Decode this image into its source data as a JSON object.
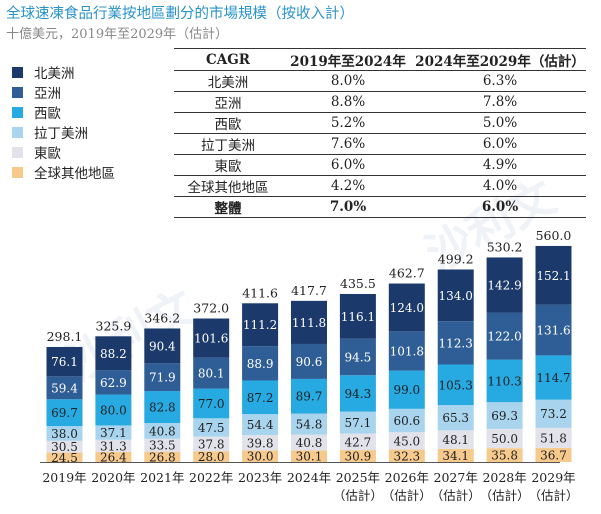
{
  "title": "全球速凍食品行業按地區劃分的市場規模（按收入計）",
  "subtitle": "十億美元，2019年至2029年（估計）",
  "watermark": "沙利文",
  "legend": [
    {
      "label": "北美洲",
      "color": "#1b3a6b"
    },
    {
      "label": "亞洲",
      "color": "#2f5d95"
    },
    {
      "label": "西歐",
      "color": "#27a9e1"
    },
    {
      "label": "拉丁美洲",
      "color": "#a8d4ee"
    },
    {
      "label": "東歐",
      "color": "#e2e2ea"
    },
    {
      "label": "全球其他地區",
      "color": "#f6c98c"
    }
  ],
  "cagr_table": {
    "headers": [
      "CAGR",
      "2019年至2024年",
      "2024年至2029年（估計）"
    ],
    "rows": [
      [
        "北美洲",
        "8.0%",
        "6.3%"
      ],
      [
        "亞洲",
        "8.8%",
        "7.8%"
      ],
      [
        "西歐",
        "5.2%",
        "5.0%"
      ],
      [
        "拉丁美洲",
        "7.6%",
        "6.0%"
      ],
      [
        "東歐",
        "6.0%",
        "4.9%"
      ],
      [
        "全球其他地區",
        "4.2%",
        "4.0%"
      ]
    ],
    "total": [
      "整體",
      "7.0%",
      "6.0%"
    ]
  },
  "chart_data": {
    "type": "bar",
    "stacked": true,
    "categories": [
      "2019年",
      "2020年",
      "2021年",
      "2022年",
      "2023年",
      "2024年",
      "2025年（估計）",
      "2026年（估計）",
      "2027年（估計）",
      "2028年（估計）",
      "2029年（估計）"
    ],
    "series": [
      {
        "name": "全球其他地區",
        "color": "#f6c98c",
        "values": [
          24.5,
          26.4,
          26.8,
          28.0,
          30.0,
          30.1,
          30.9,
          32.3,
          34.1,
          35.8,
          36.7
        ]
      },
      {
        "name": "東歐",
        "color": "#e2e2ea",
        "values": [
          30.5,
          31.3,
          33.5,
          37.8,
          39.8,
          40.8,
          42.7,
          45.0,
          48.1,
          50.0,
          51.8
        ]
      },
      {
        "name": "拉丁美洲",
        "color": "#a8d4ee",
        "values": [
          38.0,
          37.1,
          40.8,
          47.5,
          54.4,
          54.8,
          57.1,
          60.6,
          65.3,
          69.3,
          73.2
        ]
      },
      {
        "name": "西歐",
        "color": "#27a9e1",
        "values": [
          69.7,
          80.0,
          82.8,
          77.0,
          87.2,
          89.7,
          94.3,
          99.0,
          105.3,
          110.3,
          114.7
        ]
      },
      {
        "name": "亞洲",
        "color": "#2f5d95",
        "values": [
          59.4,
          62.9,
          71.9,
          80.1,
          88.9,
          90.6,
          94.5,
          101.8,
          112.3,
          122.0,
          131.6
        ]
      },
      {
        "name": "北美洲",
        "color": "#1b3a6b",
        "values": [
          76.1,
          88.2,
          90.4,
          101.6,
          111.2,
          111.8,
          116.1,
          124.0,
          134.0,
          142.9,
          152.1
        ]
      }
    ],
    "totals": [
      298.1,
      325.9,
      346.2,
      372.0,
      411.6,
      417.7,
      435.5,
      462.7,
      499.2,
      530.2,
      560.0
    ],
    "ylim": [
      0,
      560
    ]
  }
}
